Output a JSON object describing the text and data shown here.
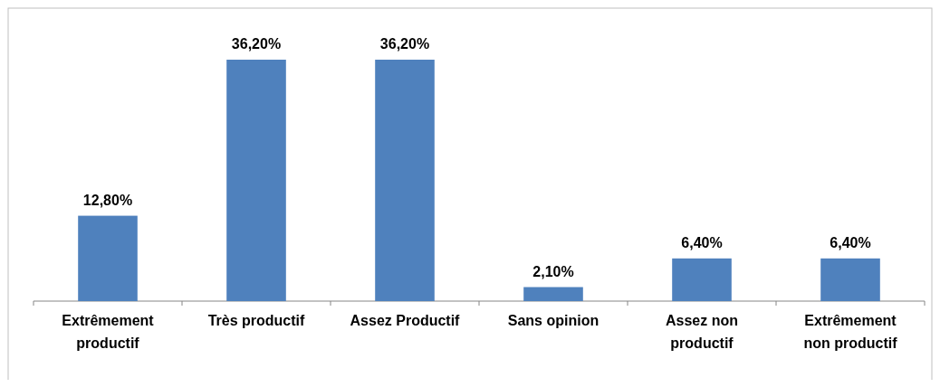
{
  "chart_data": {
    "type": "bar",
    "categories": [
      "Extrêmement productif",
      "Très productif",
      "Assez Productif",
      "Sans opinion",
      "Assez non productif",
      "Extrêmement non productif"
    ],
    "values": [
      12.8,
      36.2,
      36.2,
      2.1,
      6.4,
      6.4
    ],
    "value_labels": [
      "12,80%",
      "36,20%",
      "36,20%",
      "2,10%",
      "6,40%",
      "6,40%"
    ],
    "color": "#4f81bd"
  }
}
